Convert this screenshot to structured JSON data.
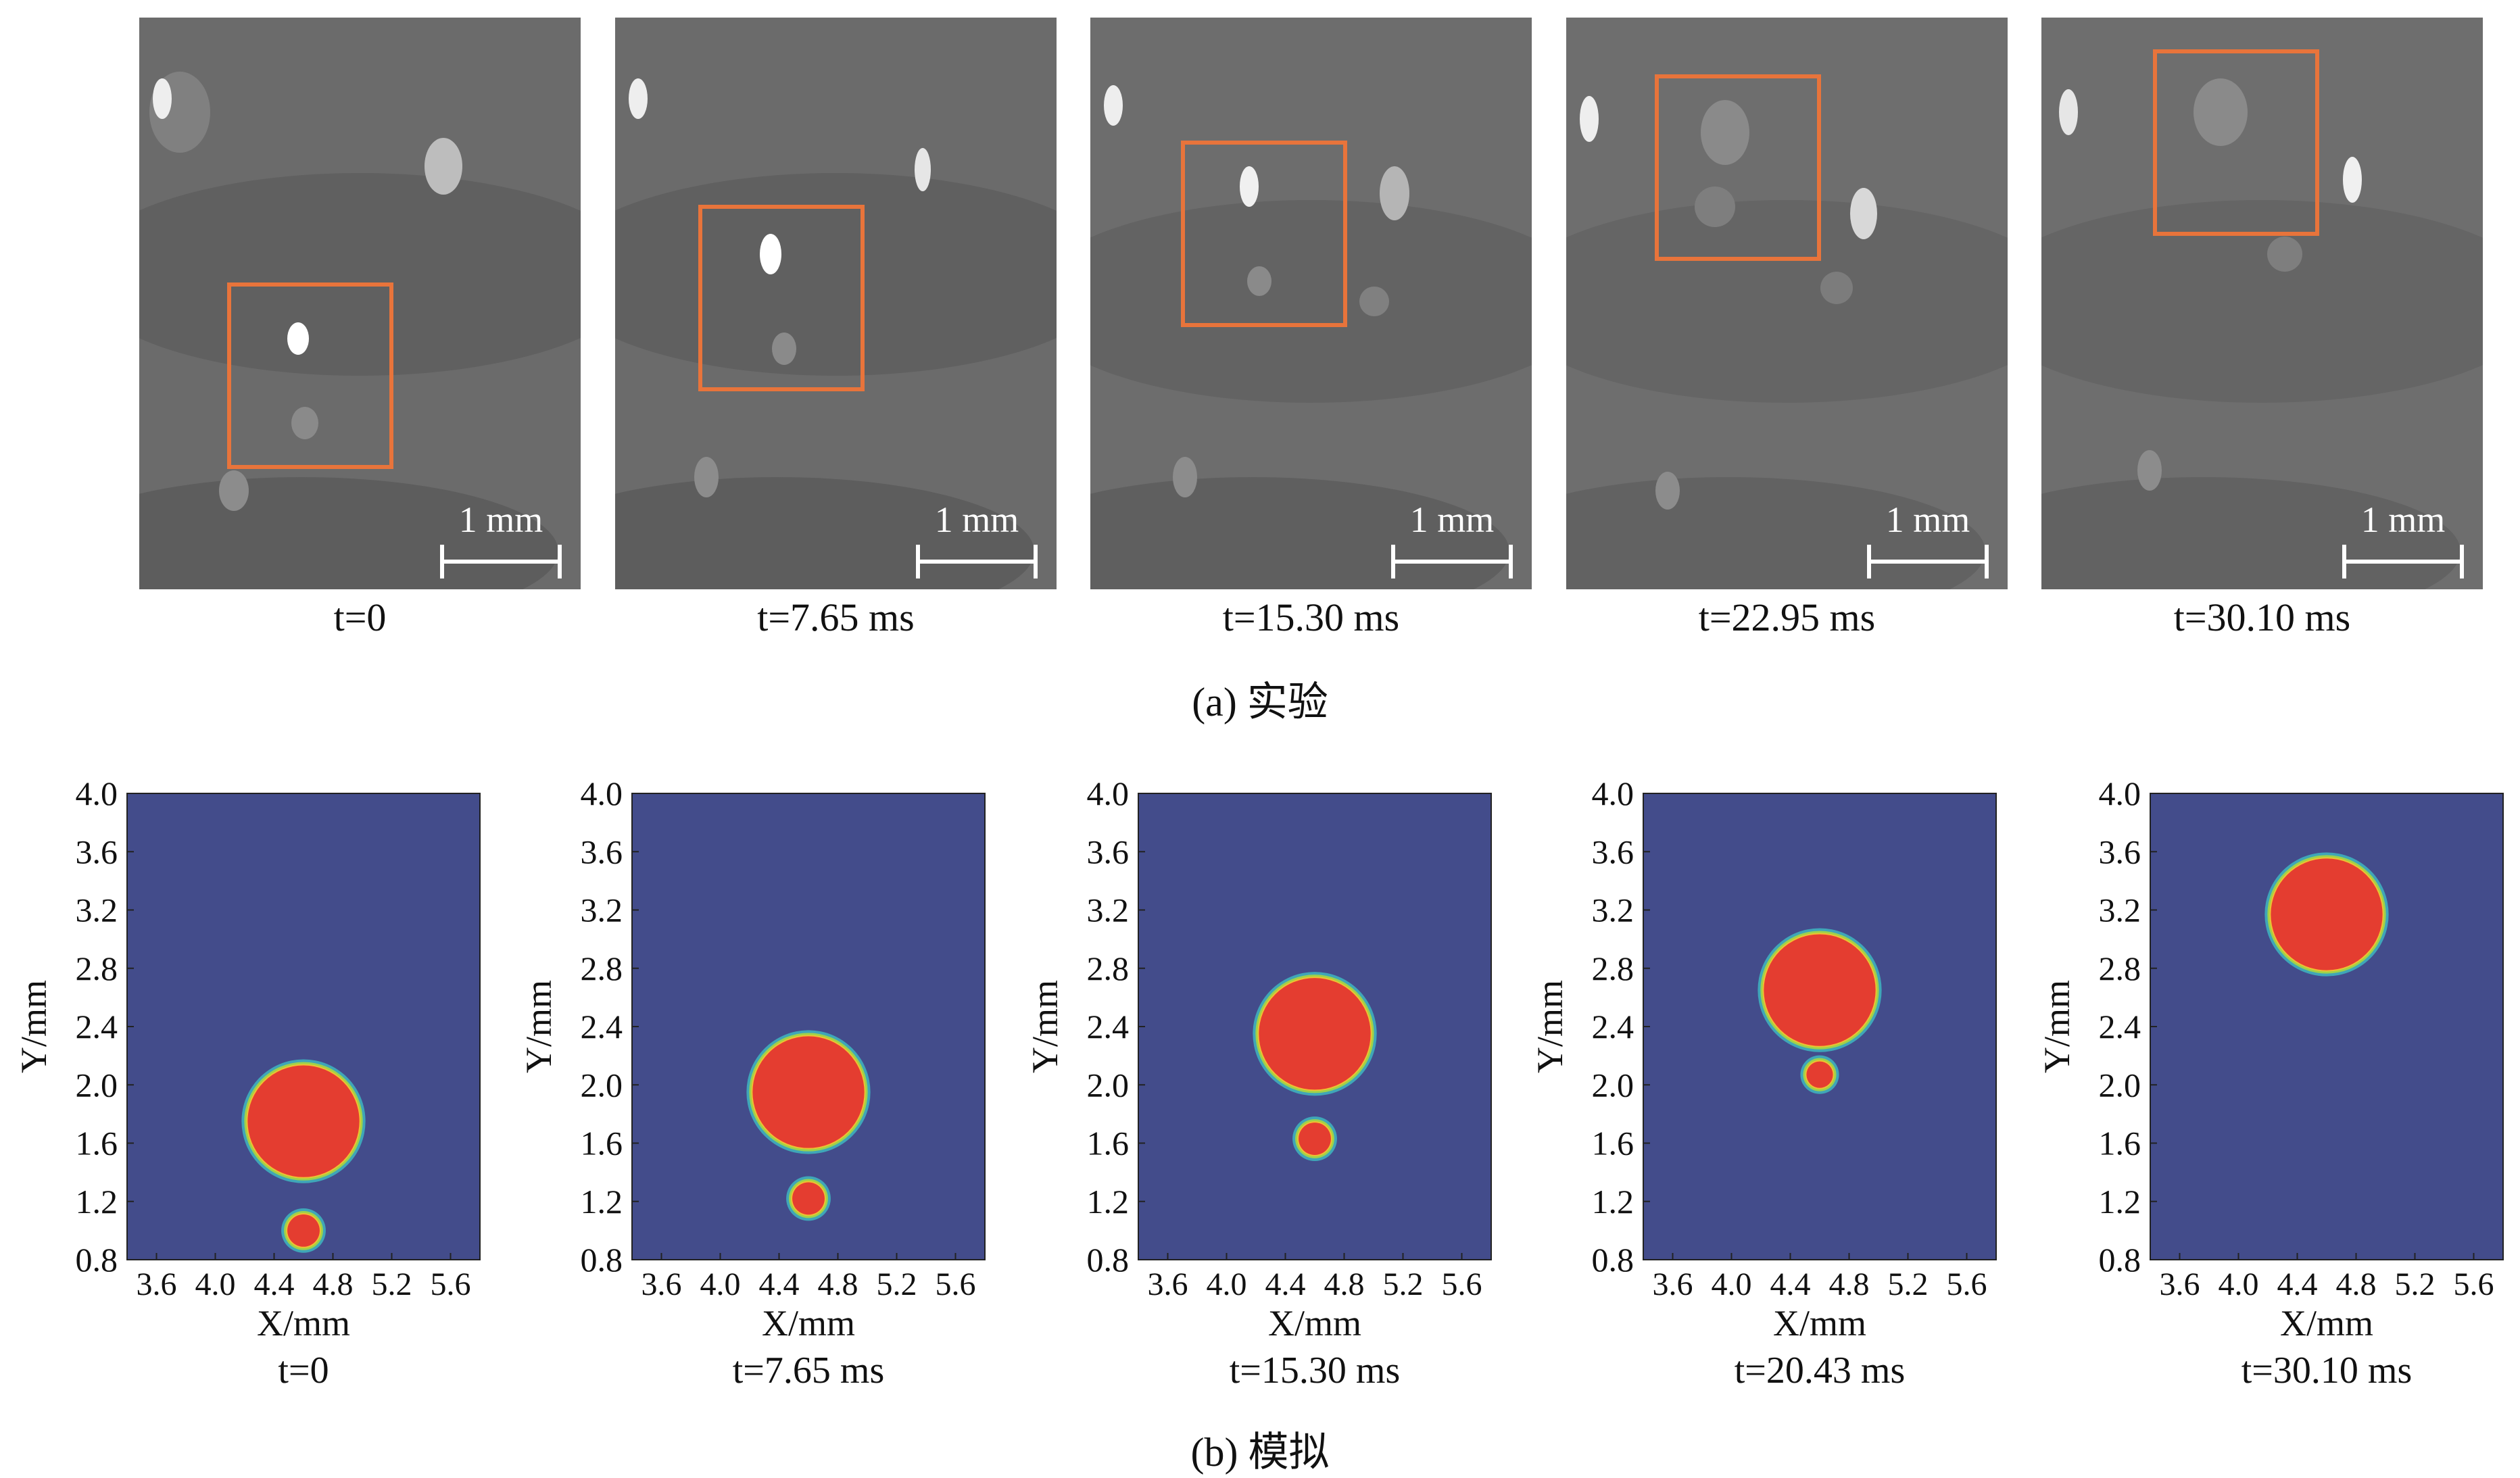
{
  "experiment": {
    "caption": "(a) 实验",
    "scale_bar_label": "1 mm",
    "frames": [
      {
        "time": "t=0"
      },
      {
        "time": "t=7.65 ms"
      },
      {
        "time": "t=15.30 ms"
      },
      {
        "time": "t=22.95 ms"
      },
      {
        "time": "t=30.10 ms"
      }
    ],
    "box_color": "#e8743b"
  },
  "simulation": {
    "caption": "(b) 模拟",
    "xlabel": "X/mm",
    "ylabel": "Y/mm",
    "x_ticks": [
      "3.6",
      "4.0",
      "4.4",
      "4.8",
      "5.2",
      "5.6"
    ],
    "y_ticks": [
      "0.8",
      "1.2",
      "1.6",
      "2.0",
      "2.4",
      "2.8",
      "3.2",
      "3.6",
      "4.0"
    ],
    "background_color": "#434c8b",
    "droplet_color": "#e43d30",
    "panels": [
      {
        "time": "t=0"
      },
      {
        "time": "t=7.65 ms"
      },
      {
        "time": "t=15.30 ms"
      },
      {
        "time": "t=20.43 ms"
      },
      {
        "time": "t=30.10 ms"
      }
    ]
  },
  "chart_data": [
    {
      "type": "scatter",
      "title": "t=0",
      "xlabel": "X/mm",
      "ylabel": "Y/mm",
      "xlim": [
        3.4,
        5.8
      ],
      "ylim": [
        0.8,
        4.0
      ],
      "series": [
        {
          "values": [
            {
              "x": 4.6,
              "y": 1.75,
              "r": 0.38
            },
            {
              "x": 4.6,
              "y": 1.0,
              "r": 0.11
            }
          ]
        }
      ]
    },
    {
      "type": "scatter",
      "title": "t=7.65 ms",
      "xlabel": "X/mm",
      "ylabel": "Y/mm",
      "xlim": [
        3.4,
        5.8
      ],
      "ylim": [
        0.8,
        4.0
      ],
      "series": [
        {
          "values": [
            {
              "x": 4.6,
              "y": 1.95,
              "r": 0.38
            },
            {
              "x": 4.6,
              "y": 1.22,
              "r": 0.11
            }
          ]
        }
      ]
    },
    {
      "type": "scatter",
      "title": "t=15.30 ms",
      "xlabel": "X/mm",
      "ylabel": "Y/mm",
      "xlim": [
        3.4,
        5.8
      ],
      "ylim": [
        0.8,
        4.0
      ],
      "series": [
        {
          "values": [
            {
              "x": 4.6,
              "y": 2.35,
              "r": 0.38
            },
            {
              "x": 4.6,
              "y": 1.63,
              "r": 0.11
            }
          ]
        }
      ]
    },
    {
      "type": "scatter",
      "title": "t=20.43 ms",
      "xlabel": "X/mm",
      "ylabel": "Y/mm",
      "xlim": [
        3.4,
        5.8
      ],
      "ylim": [
        0.8,
        4.0
      ],
      "series": [
        {
          "values": [
            {
              "x": 4.6,
              "y": 2.65,
              "r": 0.38
            },
            {
              "x": 4.6,
              "y": 2.07,
              "r": 0.09
            }
          ]
        }
      ]
    },
    {
      "type": "scatter",
      "title": "t=30.10 ms",
      "xlabel": "X/mm",
      "ylabel": "Y/mm",
      "xlim": [
        3.4,
        5.8
      ],
      "ylim": [
        0.8,
        4.0
      ],
      "series": [
        {
          "values": [
            {
              "x": 4.6,
              "y": 3.17,
              "r": 0.38
            }
          ]
        }
      ]
    }
  ]
}
